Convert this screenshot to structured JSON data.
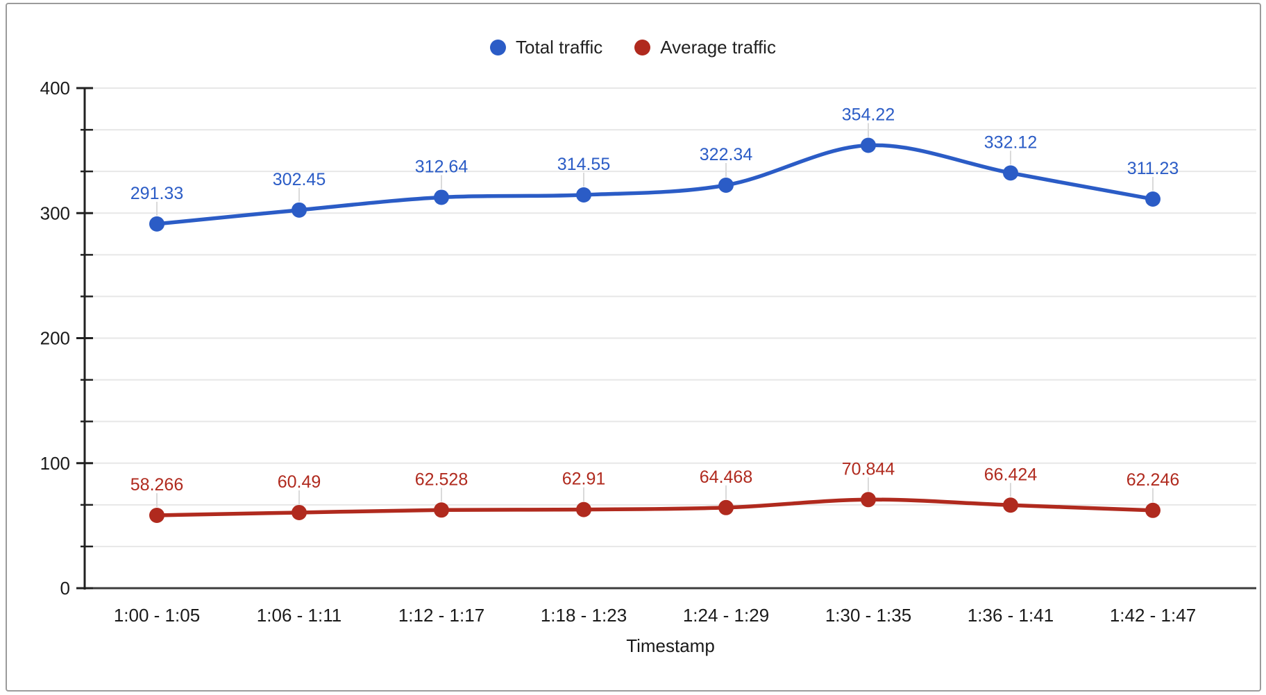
{
  "chart_data": {
    "type": "line",
    "smooth": true,
    "title": "",
    "xlabel": "Timestamp",
    "ylabel": "",
    "ylim": [
      0,
      400
    ],
    "yticks_major": [
      0,
      100,
      200,
      300,
      400
    ],
    "y_minor_divisions": 3,
    "grid": true,
    "legend_position": "top",
    "point_labels": true,
    "categories": [
      "1:00 - 1:05",
      "1:06 - 1:11",
      "1:12 - 1:17",
      "1:18 - 1:23",
      "1:24 - 1:29",
      "1:30 - 1:35",
      "1:36 - 1:41",
      "1:42 - 1:47"
    ],
    "series": [
      {
        "name": "Total traffic",
        "color": "#2b5cc6",
        "values": [
          291.33,
          302.45,
          312.64,
          314.55,
          322.34,
          354.22,
          332.12,
          311.23
        ],
        "labels": [
          "291.33",
          "302.45",
          "312.64",
          "314.55",
          "322.34",
          "354.22",
          "332.12",
          "311.23"
        ]
      },
      {
        "name": "Average traffic",
        "color": "#b02a1e",
        "values": [
          58.266,
          60.49,
          62.528,
          62.91,
          64.468,
          70.844,
          66.424,
          62.246
        ],
        "labels": [
          "58.266",
          "60.49",
          "62.528",
          "62.91",
          "64.468",
          "70.844",
          "66.424",
          "62.246"
        ]
      }
    ],
    "colors": {
      "gridline": "#e7e7e7",
      "baseline": "#3c3c3c",
      "axis": "#212121",
      "tick_label": "#1a1a1a",
      "annotation_stem": "#dadada",
      "frame_border": "#9b9b9b"
    }
  }
}
